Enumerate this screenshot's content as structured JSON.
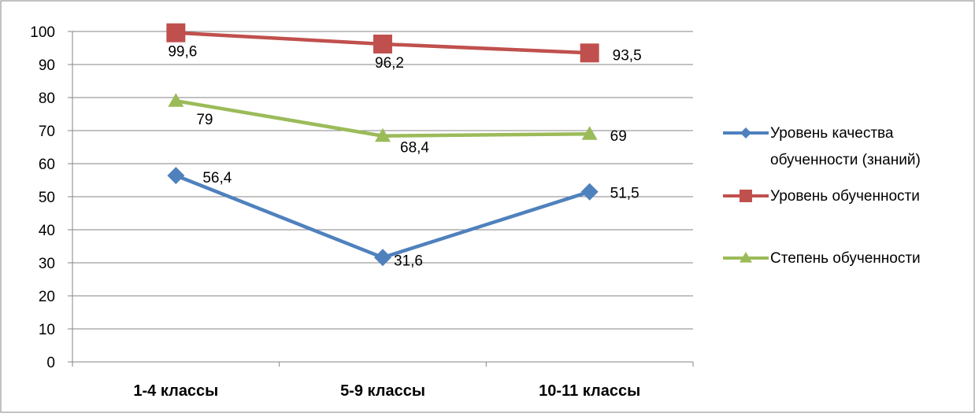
{
  "chart_data": {
    "type": "line",
    "title": "",
    "xlabel": "",
    "ylabel": "",
    "categories": [
      "1-4 классы",
      "5-9 классы",
      "10-11 классы"
    ],
    "ylim": [
      0,
      100
    ],
    "yticks": [
      0,
      10,
      20,
      30,
      40,
      50,
      60,
      70,
      80,
      90,
      100
    ],
    "grid": true,
    "legend_position": "right",
    "series": [
      {
        "name": "Уровень качества обученности (знаний)",
        "legend_lines": [
          "Уровень качества",
          "обученности (знаний)"
        ],
        "values": [
          56.4,
          31.6,
          51.5
        ],
        "labels": [
          "56,4",
          "31,6",
          "51,5"
        ],
        "color": "#4f81bd",
        "marker": "diamond"
      },
      {
        "name": "Уровень обученности",
        "legend_lines": [
          "Уровень обученности"
        ],
        "values": [
          99.6,
          96.2,
          93.5
        ],
        "labels": [
          "99,6",
          "96,2",
          "93,5"
        ],
        "color": "#c0504d",
        "marker": "square"
      },
      {
        "name": "Степень обученности",
        "legend_lines": [
          "Степень обученности"
        ],
        "values": [
          79,
          68.4,
          69
        ],
        "labels": [
          "79",
          "68,4",
          "69"
        ],
        "color": "#9bbb59",
        "marker": "triangle"
      }
    ]
  }
}
